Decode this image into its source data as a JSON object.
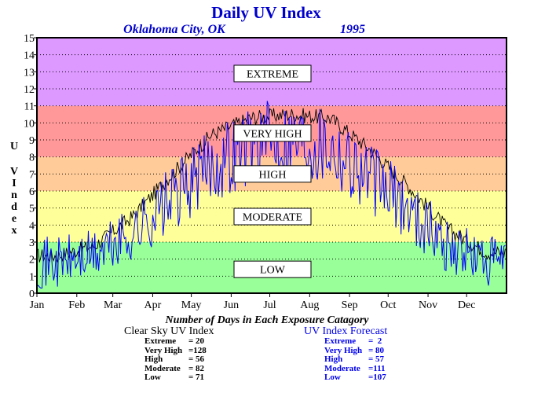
{
  "title": "Daily UV Index",
  "subtitle_location": "Oklahoma City, OK",
  "subtitle_year": "1995",
  "ylabel": "UV Index",
  "colors": {
    "title": "#0000cc",
    "clear_sky_line": "#000000",
    "forecast_line": "#0000ff",
    "band_low": "#99ff99",
    "band_moderate": "#ffff99",
    "band_high": "#ffcc99",
    "band_very_high": "#ff9999",
    "band_extreme": "#dd99ff"
  },
  "chart_data": {
    "type": "line",
    "title": "Daily UV Index",
    "ylabel": "UV Index",
    "xlabel": "",
    "ylim": [
      0,
      15
    ],
    "y_ticks": [
      0,
      1,
      2,
      3,
      4,
      5,
      6,
      7,
      8,
      9,
      10,
      11,
      12,
      13,
      14,
      15
    ],
    "x_tick_labels": [
      "Jan",
      "Feb",
      "Mar",
      "Apr",
      "May",
      "Jun",
      "Jul",
      "Aug",
      "Sep",
      "Oct",
      "Nov",
      "Dec"
    ],
    "grid": "horizontal dotted",
    "bands": [
      {
        "label": "LOW",
        "from": 0,
        "to": 3,
        "color": "#99ff99"
      },
      {
        "label": "MODERATE",
        "from": 3,
        "to": 6,
        "color": "#ffff99"
      },
      {
        "label": "HIGH",
        "from": 6,
        "to": 8,
        "color": "#ffcc99"
      },
      {
        "label": "VERY HIGH",
        "from": 8,
        "to": 11,
        "color": "#ff9999"
      },
      {
        "label": "EXTREME",
        "from": 11,
        "to": 15,
        "color": "#dd99ff"
      }
    ],
    "series": [
      {
        "label": "Clear Sky UV Index",
        "color": "#000000",
        "approx_monthly_envelope": {
          "Jan": 2.2,
          "Feb": 2.8,
          "Mar": 4.5,
          "Apr": 7.0,
          "May": 9.3,
          "Jun": 10.3,
          "Jul": 10.5,
          "Aug": 10.3,
          "Sep": 8.5,
          "Oct": 6.3,
          "Nov": 3.8,
          "Dec": 2.4
        }
      },
      {
        "label": "UV Index Forecast",
        "color": "#0000ff",
        "approx_monthly_envelope": {
          "Jan": 1.8,
          "Feb": 2.2,
          "Mar": 3.5,
          "Apr": 5.5,
          "May": 7.5,
          "Jun": 8.8,
          "Jul": 9.2,
          "Aug": 8.8,
          "Sep": 6.8,
          "Oct": 5.0,
          "Nov": 2.8,
          "Dec": 1.8
        }
      }
    ]
  },
  "categories_caption": "Number of Days in Each Exposure Catagory",
  "clear_sky_stats": {
    "heading": "Clear Sky UV Index",
    "rows": [
      {
        "label": "Extreme",
        "value": "= 20"
      },
      {
        "label": "Very High",
        "value": "=128"
      },
      {
        "label": "High",
        "value": "= 56"
      },
      {
        "label": "Moderate",
        "value": "= 82"
      },
      {
        "label": "Low",
        "value": "= 71"
      }
    ]
  },
  "forecast_stats": {
    "heading": "UV Index Forecast",
    "rows": [
      {
        "label": "Extreme",
        "value": "=  2"
      },
      {
        "label": "Very High",
        "value": "= 80"
      },
      {
        "label": "High",
        "value": "= 57"
      },
      {
        "label": "Moderate",
        "value": "=111"
      },
      {
        "label": "Low",
        "value": "=107"
      }
    ]
  }
}
